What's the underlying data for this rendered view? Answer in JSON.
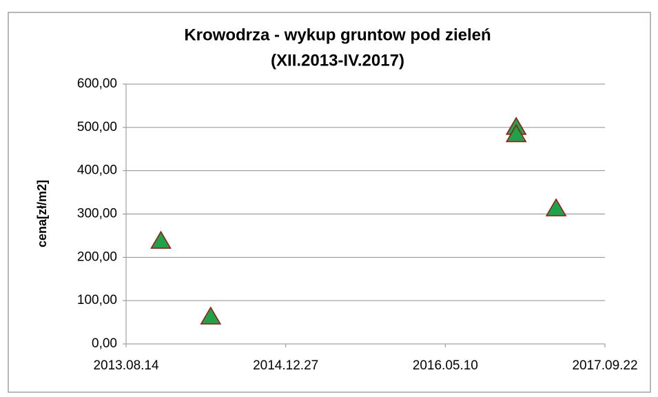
{
  "chart_data": {
    "type": "scatter",
    "title": [
      "Krowodrza - wykup gruntow pod zieleń",
      "(XII.2013-IV.2017)"
    ],
    "y_label": "cena[zł/m2]",
    "x": [
      "2013-12-01",
      "2014-05-06",
      "2016-12-18",
      "2016-12-18",
      "2017-04-22"
    ],
    "series": [
      {
        "name": "cena",
        "color": "#1fa34a",
        "edge_color": "#a01010",
        "values": [
          237,
          62,
          500,
          483,
          312
        ]
      }
    ],
    "xlim": [
      "2013-08-14",
      "2017-09-22"
    ],
    "xticks": [
      {
        "value": "2013-08-14",
        "label": "2013.08.14"
      },
      {
        "value": "2014-12-27",
        "label": "2014.12.27"
      },
      {
        "value": "2016-05-10",
        "label": "2016.05.10"
      },
      {
        "value": "2017-09-22",
        "label": "2017.09.22"
      }
    ],
    "ylim": [
      0,
      600
    ],
    "yticks": [
      {
        "value": 0,
        "label": "0,00"
      },
      {
        "value": 100,
        "label": "100,00"
      },
      {
        "value": 200,
        "label": "200,00"
      },
      {
        "value": 300,
        "label": "300,00"
      },
      {
        "value": 400,
        "label": "400,00"
      },
      {
        "value": 500,
        "label": "500,00"
      },
      {
        "value": 600,
        "label": "600,00"
      }
    ],
    "grid": true
  }
}
